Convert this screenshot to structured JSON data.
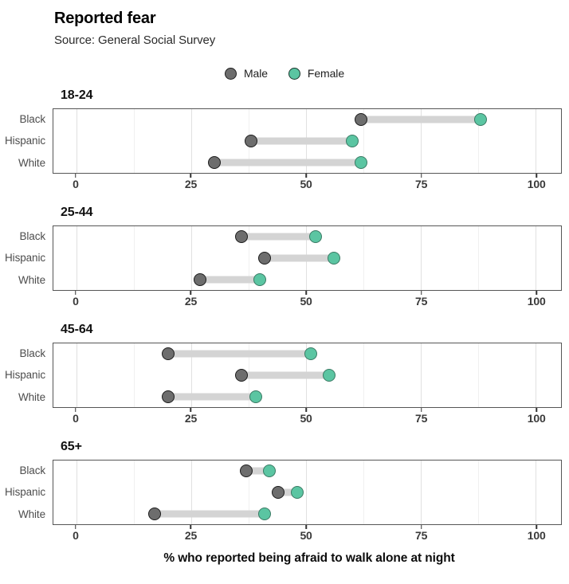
{
  "header": {
    "title": "Reported fear",
    "subtitle": "Source: General Social Survey"
  },
  "legend": {
    "items": [
      {
        "label": "Male",
        "color": "#6d6d6d"
      },
      {
        "label": "Female",
        "color": "#5bc5a2"
      }
    ]
  },
  "axis": {
    "x_ticks": [
      0,
      25,
      50,
      75,
      100
    ],
    "x_title": "% who reported being afraid to walk alone at night"
  },
  "chart_data": {
    "type": "dumbbell",
    "title": "Reported fear",
    "subtitle": "Source: General Social Survey",
    "xlabel": "% who reported being afraid to walk alone at night",
    "xlim": [
      -5,
      105.5
    ],
    "x_ticks": [
      0,
      25,
      50,
      75,
      100
    ],
    "grid": {
      "major": [
        0,
        25,
        50,
        75,
        100
      ],
      "minor": [
        12.5,
        37.5,
        62.5,
        87.5
      ]
    },
    "legend_position": "top-center",
    "colors": {
      "male": "#6d6d6d",
      "female": "#5bc5a2",
      "connector": "#d4d4d4"
    },
    "facets": [
      {
        "title": "18-24",
        "categories": [
          "Black",
          "Hispanic",
          "White"
        ],
        "series": [
          {
            "name": "Male",
            "values": [
              62,
              38,
              30
            ]
          },
          {
            "name": "Female",
            "values": [
              88,
              60,
              62
            ]
          }
        ]
      },
      {
        "title": "25-44",
        "categories": [
          "Black",
          "Hispanic",
          "White"
        ],
        "series": [
          {
            "name": "Male",
            "values": [
              36,
              41,
              27
            ]
          },
          {
            "name": "Female",
            "values": [
              52,
              56,
              40
            ]
          }
        ]
      },
      {
        "title": "45-64",
        "categories": [
          "Black",
          "Hispanic",
          "White"
        ],
        "series": [
          {
            "name": "Male",
            "values": [
              20,
              36,
              20
            ]
          },
          {
            "name": "Female",
            "values": [
              51,
              55,
              39
            ]
          }
        ]
      },
      {
        "title": "65+",
        "categories": [
          "Black",
          "Hispanic",
          "White"
        ],
        "series": [
          {
            "name": "Male",
            "values": [
              37,
              44,
              17
            ]
          },
          {
            "name": "Female",
            "values": [
              42,
              48,
              41
            ]
          }
        ]
      }
    ]
  }
}
